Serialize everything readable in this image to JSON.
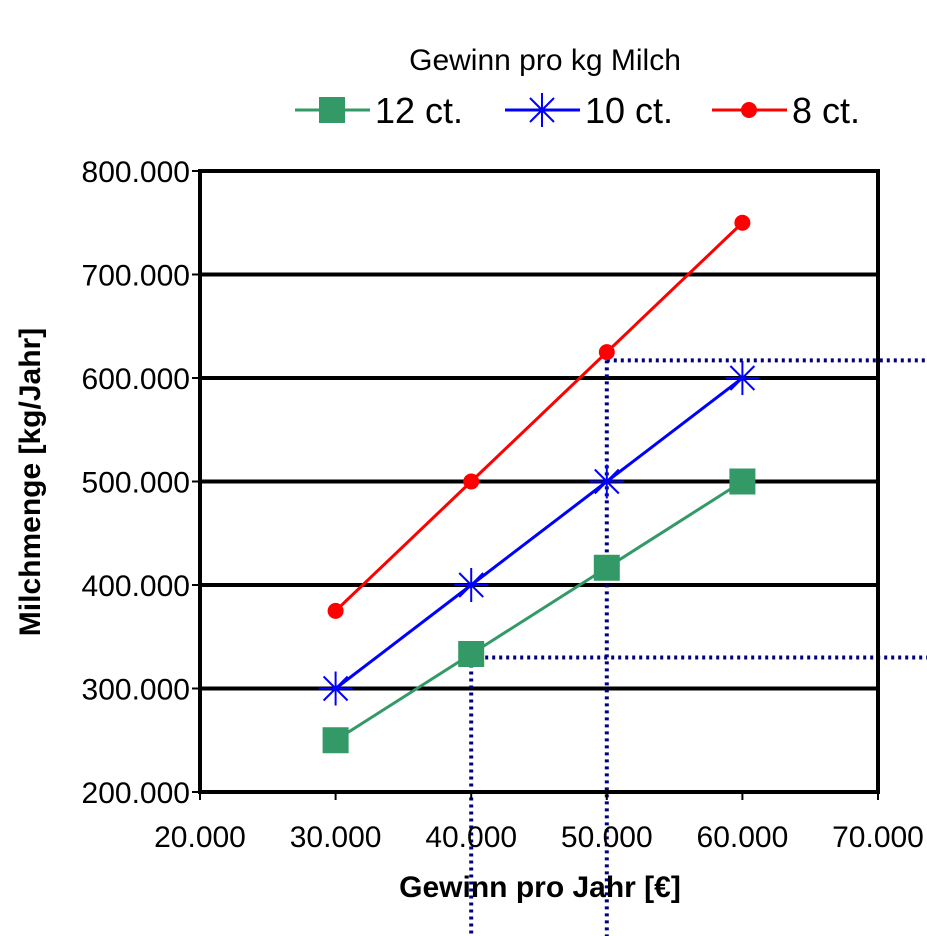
{
  "chart_data": {
    "type": "line",
    "title": "Gewinn pro kg Milch",
    "xlabel": "Gewinn pro Jahr [€]",
    "ylabel": "Milchmenge [kg/Jahr]",
    "xlim": [
      20000,
      70000
    ],
    "ylim": [
      200000,
      800000
    ],
    "xticks": [
      20000,
      30000,
      40000,
      50000,
      60000,
      70000
    ],
    "yticks": [
      200000,
      300000,
      400000,
      500000,
      600000,
      700000,
      800000
    ],
    "xtick_labels": [
      "20.000",
      "30.000",
      "40.000",
      "50.000",
      "60.000",
      "70.000"
    ],
    "ytick_labels": [
      "200.000",
      "300.000",
      "400.000",
      "500.000",
      "600.000",
      "700.000",
      "800.000"
    ],
    "grid": "horizontal",
    "legend_position": "top",
    "x": [
      30000,
      40000,
      50000,
      60000
    ],
    "series": [
      {
        "name": "12 ct.",
        "values": [
          250000,
          333333,
          416667,
          500000
        ],
        "color": "#339966",
        "marker": "square"
      },
      {
        "name": "10 ct.",
        "values": [
          300000,
          400000,
          500000,
          600000
        ],
        "color": "#0000ff",
        "marker": "asterisk"
      },
      {
        "name": "8 ct.",
        "values": [
          375000,
          500000,
          625000,
          750000
        ],
        "color": "#ff0000",
        "marker": "circle"
      }
    ],
    "reference_lines": [
      {
        "x": 40000,
        "y": 330000,
        "color": "#000080",
        "style": "dotted"
      },
      {
        "x": 50000,
        "y": 617000,
        "color": "#000080",
        "style": "dotted"
      }
    ]
  }
}
